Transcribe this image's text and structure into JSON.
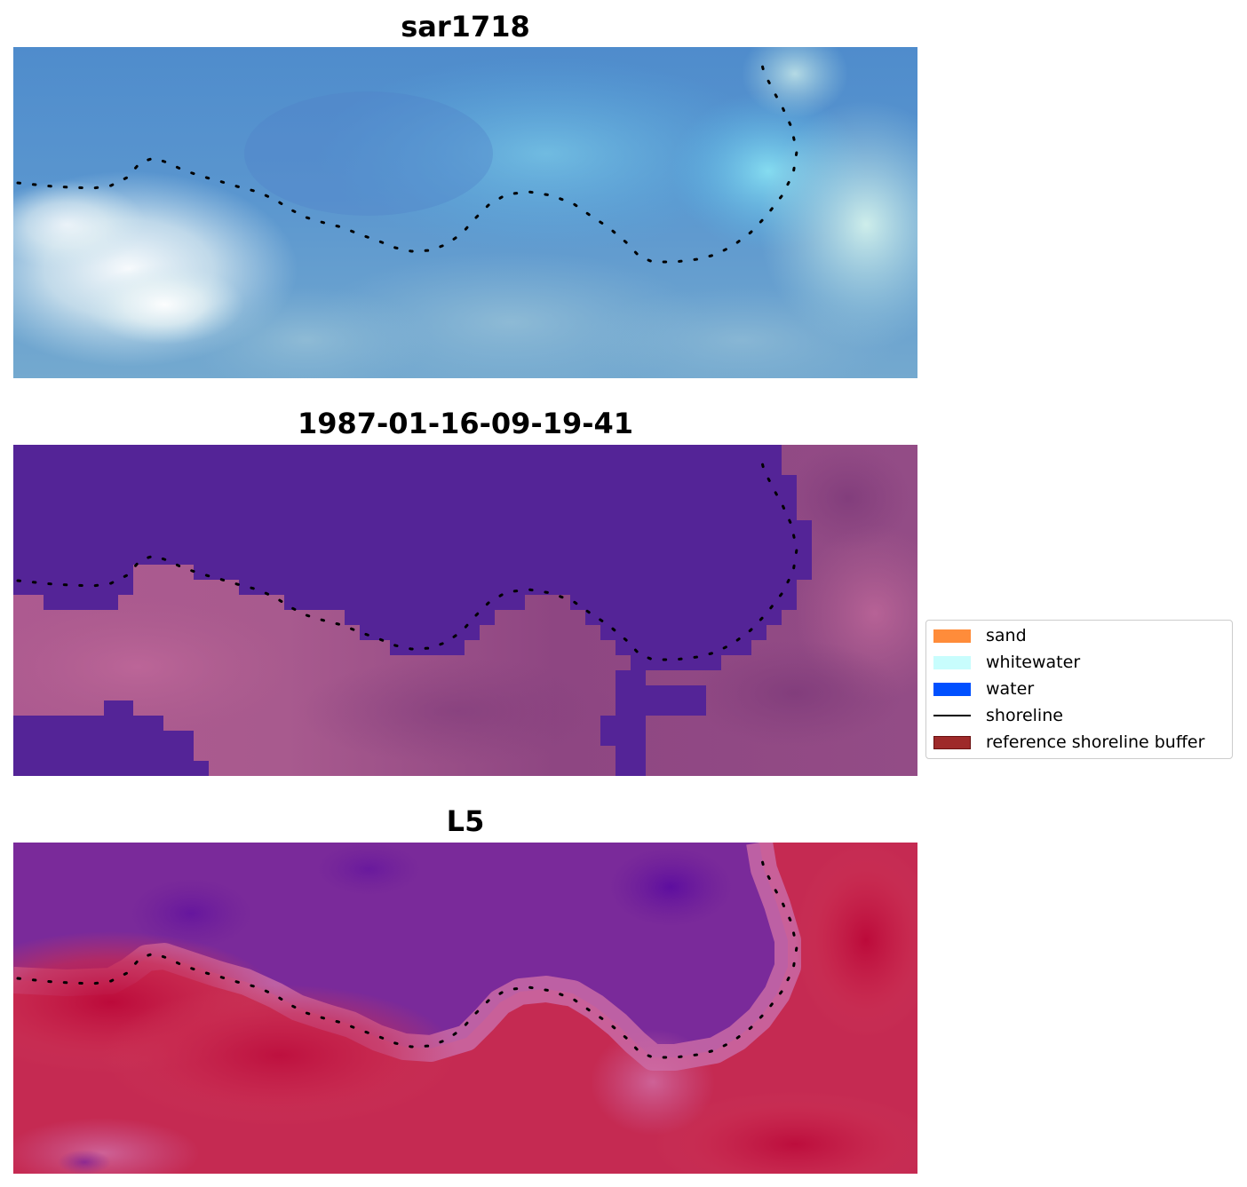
{
  "panels": [
    {
      "title": "sar1718",
      "image": "sar-rgb-composite"
    },
    {
      "title": "1987-01-16-09-19-41",
      "image": "classified-water-land-overlay"
    },
    {
      "title": "L5",
      "image": "landsat5-false-color-index"
    }
  ],
  "legend": {
    "items": [
      {
        "label": "sand",
        "color": "#ff8c3a",
        "kind": "patch"
      },
      {
        "label": "whitewater",
        "color": "#c8fdfd",
        "kind": "patch"
      },
      {
        "label": "water",
        "color": "#0050ff",
        "kind": "patch"
      },
      {
        "label": "shoreline",
        "color": "#000000",
        "kind": "line"
      },
      {
        "label": "reference shoreline buffer",
        "color": "#9e2a2a",
        "kind": "patch"
      }
    ]
  },
  "colors": {
    "sar_base": "#5b95c8",
    "water_class": "#542497",
    "land_class": "#9a4f8d",
    "l5_water": "#7a2a9a",
    "l5_land": "#c0184a"
  }
}
